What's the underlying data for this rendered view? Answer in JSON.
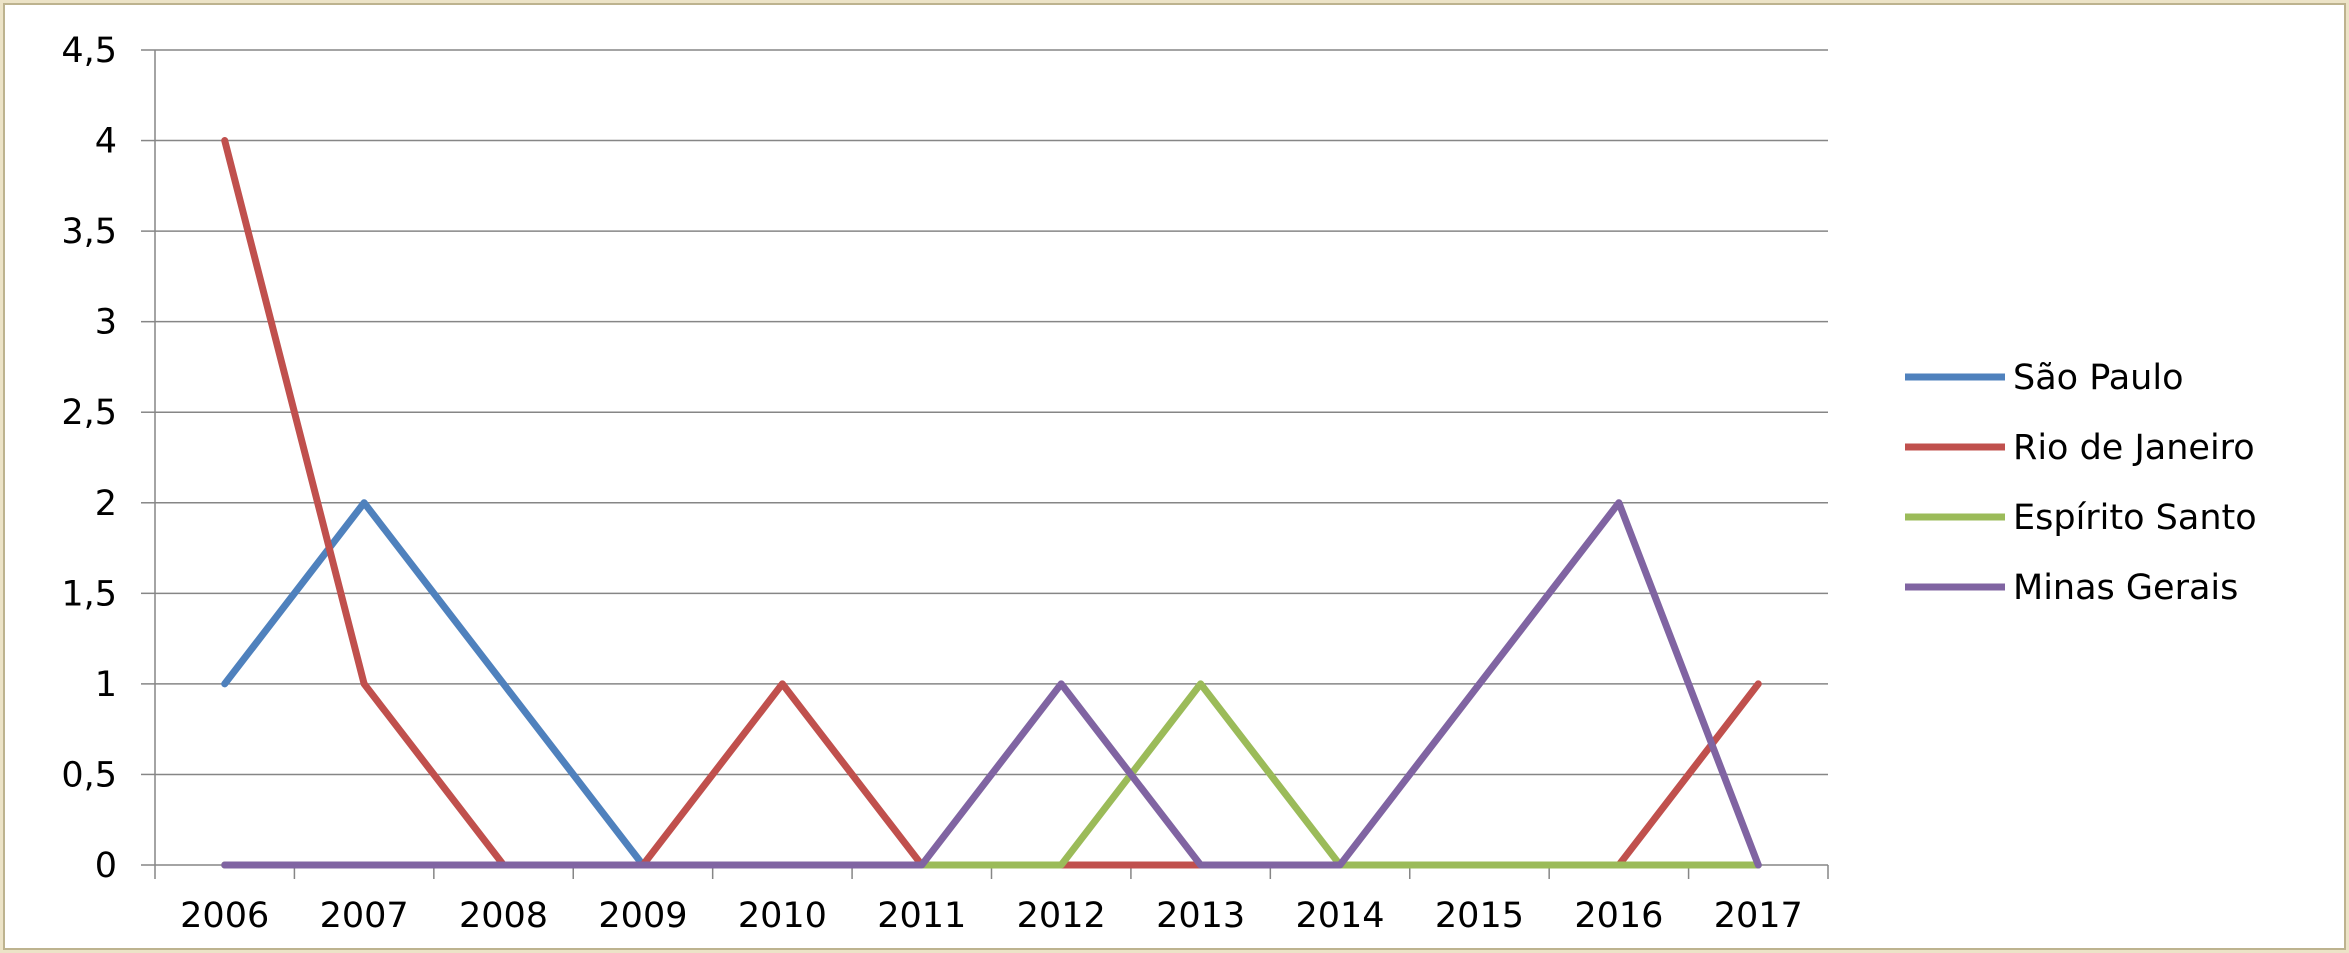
{
  "chart_data": {
    "type": "line",
    "title": "",
    "xlabel": "",
    "ylabel": "",
    "categories": [
      "2006",
      "2007",
      "2008",
      "2009",
      "2010",
      "2011",
      "2012",
      "2013",
      "2014",
      "2015",
      "2016",
      "2017"
    ],
    "ylim": [
      0,
      4.5
    ],
    "y_ticks": [
      "0",
      "0,5",
      "1",
      "1,5",
      "2",
      "2,5",
      "3",
      "3,5",
      "4",
      "4,5"
    ],
    "grid": true,
    "legend_position": "right",
    "series": [
      {
        "name": "São Paulo",
        "color": "#4f81bd",
        "values": [
          1,
          2,
          1,
          0,
          0,
          0,
          0,
          0,
          0,
          0,
          0,
          0
        ]
      },
      {
        "name": "Rio de Janeiro",
        "color": "#c0504d",
        "values": [
          4,
          1,
          0,
          0,
          1,
          0,
          0,
          0,
          0,
          0,
          0,
          1
        ]
      },
      {
        "name": "Espírito Santo",
        "color": "#9bbb59",
        "values": [
          0,
          0,
          0,
          0,
          0,
          0,
          0,
          1,
          0,
          0,
          0,
          0
        ]
      },
      {
        "name": "Minas Gerais",
        "color": "#8064a2",
        "values": [
          0,
          0,
          0,
          0,
          0,
          0,
          1,
          0,
          0,
          1,
          2,
          0
        ]
      }
    ]
  }
}
